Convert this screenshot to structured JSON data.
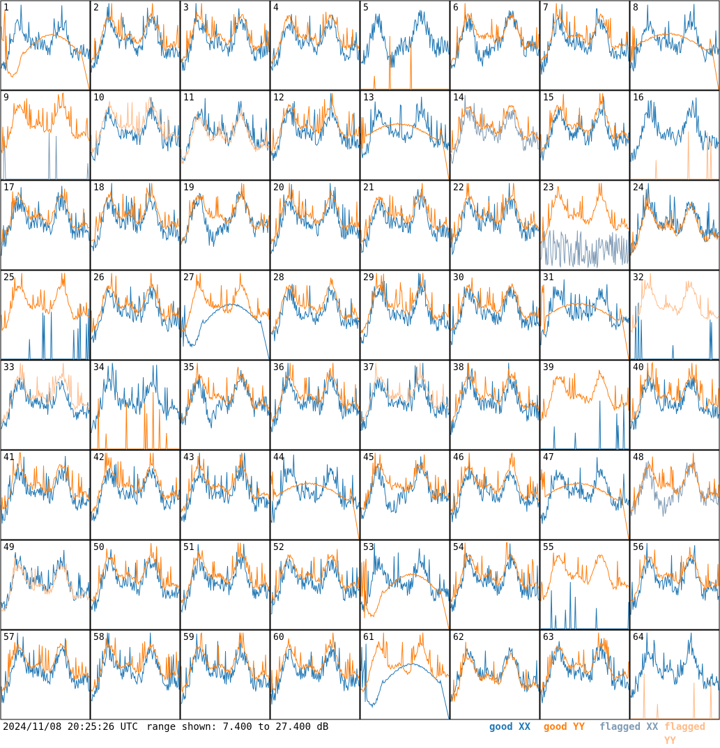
{
  "footer": {
    "timestamp": "2024/11/08 20:25:26 UTC",
    "range_text": "range shown: 7.400 to 27.400 dB"
  },
  "legend": {
    "good_xx": "good XX",
    "good_yy": "good YY",
    "flagged_xx": "flagged XX",
    "flagged_yy": "flagged YY"
  },
  "colors": {
    "good_xx": "#1f77b4",
    "good_yy": "#ff7f0e",
    "flagged_xx": "#7f9bb5",
    "flagged_yy": "#ffbb88"
  },
  "chart_data": {
    "type": "line",
    "layout": "8x8 small multiples",
    "range_db": [
      7.4,
      27.4
    ],
    "panels": [
      {
        "id": "1",
        "xx": "good",
        "yy": "good",
        "yy_shape": "dip-hump-drop"
      },
      {
        "id": "2",
        "xx": "good",
        "yy": "good",
        "yy_shape": "normal"
      },
      {
        "id": "3",
        "xx": "good",
        "yy": "good",
        "yy_shape": "normal"
      },
      {
        "id": "4",
        "xx": "good",
        "yy": "good",
        "yy_shape": "normal"
      },
      {
        "id": "5",
        "xx": "good",
        "yy": "good",
        "yy_shape": "dropout",
        "xx_shape": "deep-dip"
      },
      {
        "id": "6",
        "xx": "good",
        "yy": "good",
        "yy_shape": "normal",
        "xx_shape": "deep-dip"
      },
      {
        "id": "7",
        "xx": "good",
        "yy": "good",
        "yy_shape": "normal"
      },
      {
        "id": "8",
        "xx": "good",
        "yy": "good",
        "yy_shape": "hump-drop"
      },
      {
        "id": "9",
        "xx": "flagged",
        "yy": "good",
        "yy_shape": "normal",
        "xx_shape": "dropout"
      },
      {
        "id": "10",
        "xx": "good",
        "yy": "flagged",
        "yy_shape": "normal"
      },
      {
        "id": "11",
        "xx": "good",
        "yy": "flagged",
        "yy_shape": "low"
      },
      {
        "id": "12",
        "xx": "good",
        "yy": "good",
        "yy_shape": "normal"
      },
      {
        "id": "13",
        "xx": "good",
        "yy": "good",
        "yy_shape": "hump-drop"
      },
      {
        "id": "14",
        "xx": "flagged",
        "yy": "good",
        "yy_shape": "normal"
      },
      {
        "id": "15",
        "xx": "good",
        "yy": "good",
        "yy_shape": "normal"
      },
      {
        "id": "16",
        "xx": "good",
        "yy": "flagged",
        "yy_shape": "dropout"
      },
      {
        "id": "17",
        "xx": "good",
        "yy": "good",
        "yy_shape": "normal"
      },
      {
        "id": "18",
        "xx": "good",
        "yy": "good",
        "yy_shape": "normal"
      },
      {
        "id": "19",
        "xx": "good",
        "yy": "good",
        "yy_shape": "normal",
        "xx_shape": "deep-dip"
      },
      {
        "id": "20",
        "xx": "good",
        "yy": "good",
        "yy_shape": "normal"
      },
      {
        "id": "21",
        "xx": "good",
        "yy": "good",
        "yy_shape": "normal"
      },
      {
        "id": "22",
        "xx": "good",
        "yy": "good",
        "yy_shape": "normal"
      },
      {
        "id": "23",
        "xx": "flagged",
        "yy": "good",
        "yy_shape": "normal",
        "xx_shape": "noisy-low"
      },
      {
        "id": "24",
        "xx": "good",
        "yy": "good",
        "yy_shape": "low"
      },
      {
        "id": "25",
        "xx": "good",
        "yy": "good",
        "yy_shape": "normal",
        "xx_shape": "dropout"
      },
      {
        "id": "26",
        "xx": "good",
        "yy": "good",
        "yy_shape": "normal"
      },
      {
        "id": "27",
        "xx": "good",
        "yy": "good",
        "yy_shape": "normal",
        "xx_shape": "dip-hump-drop"
      },
      {
        "id": "28",
        "xx": "good",
        "yy": "good",
        "yy_shape": "normal"
      },
      {
        "id": "29",
        "xx": "good",
        "yy": "good",
        "yy_shape": "normal"
      },
      {
        "id": "30",
        "xx": "good",
        "yy": "good",
        "yy_shape": "normal"
      },
      {
        "id": "31",
        "xx": "good",
        "yy": "good",
        "yy_shape": "hump-drop"
      },
      {
        "id": "32",
        "xx": "good",
        "yy": "flagged",
        "yy_shape": "normal",
        "xx_shape": "dropout"
      },
      {
        "id": "33",
        "xx": "good",
        "yy": "flagged",
        "yy_shape": "normal"
      },
      {
        "id": "34",
        "xx": "good",
        "yy": "good",
        "yy_shape": "dropout"
      },
      {
        "id": "35",
        "xx": "good",
        "yy": "good",
        "yy_shape": "normal",
        "xx_shape": "deep-dip"
      },
      {
        "id": "36",
        "xx": "good",
        "yy": "good",
        "yy_shape": "normal"
      },
      {
        "id": "37",
        "xx": "good",
        "yy": "flagged",
        "yy_shape": "normal"
      },
      {
        "id": "38",
        "xx": "good",
        "yy": "good",
        "yy_shape": "normal"
      },
      {
        "id": "39",
        "xx": "good",
        "yy": "good",
        "yy_shape": "normal",
        "xx_shape": "dropout"
      },
      {
        "id": "40",
        "xx": "good",
        "yy": "good",
        "yy_shape": "normal"
      },
      {
        "id": "41",
        "xx": "good",
        "yy": "good",
        "yy_shape": "normal"
      },
      {
        "id": "42",
        "xx": "good",
        "yy": "good",
        "yy_shape": "normal"
      },
      {
        "id": "43",
        "xx": "good",
        "yy": "good",
        "yy_shape": "normal"
      },
      {
        "id": "44",
        "xx": "good",
        "yy": "good",
        "yy_shape": "hump-drop"
      },
      {
        "id": "45",
        "xx": "good",
        "yy": "good",
        "yy_shape": "normal",
        "xx_shape": "deep-dip"
      },
      {
        "id": "46",
        "xx": "good",
        "yy": "good",
        "yy_shape": "normal"
      },
      {
        "id": "47",
        "xx": "good",
        "yy": "good",
        "yy_shape": "hump-drop"
      },
      {
        "id": "48",
        "xx": "flagged",
        "yy": "good",
        "yy_shape": "normal",
        "xx_shape": "deep-dip"
      },
      {
        "id": "49",
        "xx": "good",
        "yy": "flagged",
        "yy_shape": "low"
      },
      {
        "id": "50",
        "xx": "good",
        "yy": "good",
        "yy_shape": "normal"
      },
      {
        "id": "51",
        "xx": "good",
        "yy": "good",
        "yy_shape": "normal"
      },
      {
        "id": "52",
        "xx": "good",
        "yy": "good",
        "yy_shape": "normal"
      },
      {
        "id": "53",
        "xx": "good",
        "yy": "good",
        "yy_shape": "dip-hump-drop"
      },
      {
        "id": "54",
        "xx": "good",
        "yy": "good",
        "yy_shape": "normal"
      },
      {
        "id": "55",
        "xx": "good",
        "yy": "good",
        "yy_shape": "normal",
        "xx_shape": "dropout"
      },
      {
        "id": "56",
        "xx": "good",
        "yy": "good",
        "yy_shape": "normal"
      },
      {
        "id": "57",
        "xx": "good",
        "yy": "good",
        "yy_shape": "normal"
      },
      {
        "id": "58",
        "xx": "good",
        "yy": "good",
        "yy_shape": "normal"
      },
      {
        "id": "59",
        "xx": "good",
        "yy": "good",
        "yy_shape": "normal"
      },
      {
        "id": "60",
        "xx": "good",
        "yy": "good",
        "yy_shape": "normal"
      },
      {
        "id": "61",
        "xx": "good",
        "yy": "good",
        "yy_shape": "normal",
        "xx_shape": "dip-hump-drop"
      },
      {
        "id": "62",
        "xx": "good",
        "yy": "good",
        "yy_shape": "low"
      },
      {
        "id": "63",
        "xx": "good",
        "yy": "good",
        "yy_shape": "normal"
      },
      {
        "id": "64",
        "xx": "good",
        "yy": "flagged",
        "yy_shape": "dropout"
      }
    ]
  }
}
